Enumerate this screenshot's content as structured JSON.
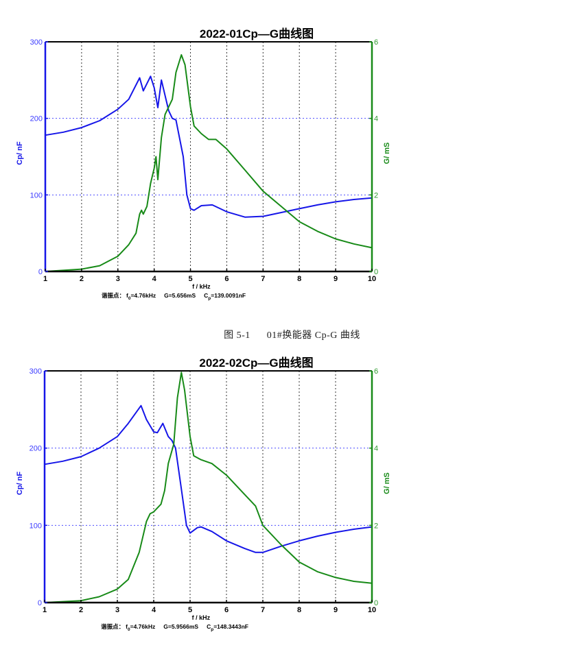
{
  "figure_caption": {
    "number": "图 5-1",
    "text": "01#换能器 Cp-G 曲线"
  },
  "chart_data": [
    {
      "type": "line",
      "title": "2022-01Cp—G曲线图",
      "xlabel": "f / kHz",
      "ylabel": "Cp/ nF",
      "y2label": "G/ mS",
      "xlim": [
        1,
        10
      ],
      "ylim": [
        0,
        300
      ],
      "y2lim": [
        0,
        6
      ],
      "x_ticks": [
        1,
        2,
        3,
        4,
        5,
        6,
        7,
        8,
        9,
        10
      ],
      "y_ticks": [
        0,
        100,
        200,
        300
      ],
      "y2_ticks": [
        0,
        2,
        4,
        6
      ],
      "grid": {
        "vertical": "dotted black",
        "horizontal": "dotted blue"
      },
      "annotation": {
        "prefix": "谐振点：",
        "f0_label": "f",
        "f0_sub": "0",
        "f0_value": "=4.76kHz",
        "g_value": "G=5.656mS",
        "cp_label": "C",
        "cp_sub": "p",
        "cp_value": "=139.0091nF"
      },
      "series": [
        {
          "name": "Cp",
          "axis": "left",
          "color": "#1515e8",
          "x": [
            1.0,
            1.5,
            2.0,
            2.5,
            3.0,
            3.3,
            3.6,
            3.7,
            3.9,
            4.0,
            4.1,
            4.2,
            4.4,
            4.5,
            4.6,
            4.8,
            4.9,
            5.0,
            5.1,
            5.3,
            5.6,
            6.0,
            6.5,
            7.0,
            7.5,
            8.0,
            8.5,
            9.0,
            9.5,
            10.0
          ],
          "values": [
            178,
            182,
            188,
            197,
            212,
            225,
            253,
            236,
            255,
            240,
            214,
            250,
            210,
            200,
            198,
            150,
            100,
            82,
            80,
            86,
            87,
            78,
            71,
            72,
            77,
            82,
            87,
            91,
            94,
            96
          ]
        },
        {
          "name": "G",
          "axis": "right",
          "color": "#178a17",
          "x": [
            1.0,
            2.0,
            2.5,
            3.0,
            3.3,
            3.5,
            3.6,
            3.65,
            3.7,
            3.8,
            3.9,
            4.0,
            4.05,
            4.1,
            4.2,
            4.3,
            4.4,
            4.5,
            4.6,
            4.75,
            4.85,
            5.0,
            5.1,
            5.3,
            5.5,
            5.7,
            6.0,
            6.5,
            7.0,
            7.5,
            8.0,
            8.5,
            9.0,
            9.5,
            10.0
          ],
          "values": [
            0,
            0.06,
            0.15,
            0.4,
            0.7,
            1.0,
            1.5,
            1.6,
            1.5,
            1.7,
            2.3,
            2.7,
            3.0,
            2.4,
            3.5,
            4.1,
            4.3,
            4.5,
            5.2,
            5.66,
            5.4,
            4.3,
            3.8,
            3.6,
            3.45,
            3.45,
            3.2,
            2.65,
            2.1,
            1.7,
            1.3,
            1.05,
            0.85,
            0.72,
            0.62
          ]
        }
      ]
    },
    {
      "type": "line",
      "title": "2022-02Cp—G曲线图",
      "xlabel": "f / kHz",
      "ylabel": "Cp/ nF",
      "y2label": "G/ mS",
      "xlim": [
        1,
        10
      ],
      "ylim": [
        0,
        300
      ],
      "y2lim": [
        0,
        6
      ],
      "x_ticks": [
        1,
        2,
        3,
        4,
        5,
        6,
        7,
        8,
        9,
        10
      ],
      "y_ticks": [
        0,
        100,
        200,
        300
      ],
      "y2_ticks": [
        0,
        2,
        4,
        6
      ],
      "grid": {
        "vertical": "dotted black",
        "horizontal": "dotted blue"
      },
      "annotation": {
        "prefix": "谐振点：",
        "f0_label": "f",
        "f0_sub": "0",
        "f0_value": "=4.76kHz",
        "g_value": "G=5.9566mS",
        "cp_label": "C",
        "cp_sub": "p",
        "cp_value": "=148.3443nF"
      },
      "series": [
        {
          "name": "Cp",
          "axis": "left",
          "color": "#1515e8",
          "x": [
            1.0,
            1.5,
            2.0,
            2.5,
            3.0,
            3.3,
            3.65,
            3.8,
            4.0,
            4.1,
            4.25,
            4.4,
            4.5,
            4.6,
            4.75,
            4.9,
            5.0,
            5.2,
            5.3,
            5.6,
            6.0,
            6.5,
            6.8,
            7.0,
            7.5,
            8.0,
            8.5,
            9.0,
            9.5,
            10.0
          ],
          "values": [
            179,
            183,
            189,
            200,
            215,
            232,
            255,
            237,
            221,
            220,
            232,
            215,
            210,
            200,
            150,
            100,
            90,
            97,
            98,
            92,
            80,
            70,
            65,
            65,
            73,
            80,
            86,
            91,
            95,
            98
          ]
        },
        {
          "name": "G",
          "axis": "right",
          "color": "#178a17",
          "x": [
            1.0,
            2.0,
            2.5,
            3.0,
            3.3,
            3.6,
            3.8,
            3.9,
            4.0,
            4.2,
            4.3,
            4.4,
            4.55,
            4.65,
            4.76,
            4.85,
            5.0,
            5.1,
            5.3,
            5.6,
            6.0,
            6.5,
            6.8,
            7.0,
            7.5,
            8.0,
            8.5,
            9.0,
            9.5,
            10.0
          ],
          "values": [
            0,
            0.05,
            0.15,
            0.35,
            0.6,
            1.3,
            2.1,
            2.3,
            2.35,
            2.55,
            2.9,
            3.6,
            4.1,
            5.3,
            5.96,
            5.5,
            4.3,
            3.8,
            3.7,
            3.6,
            3.3,
            2.8,
            2.5,
            2.0,
            1.5,
            1.05,
            0.8,
            0.65,
            0.55,
            0.5
          ]
        }
      ]
    }
  ]
}
